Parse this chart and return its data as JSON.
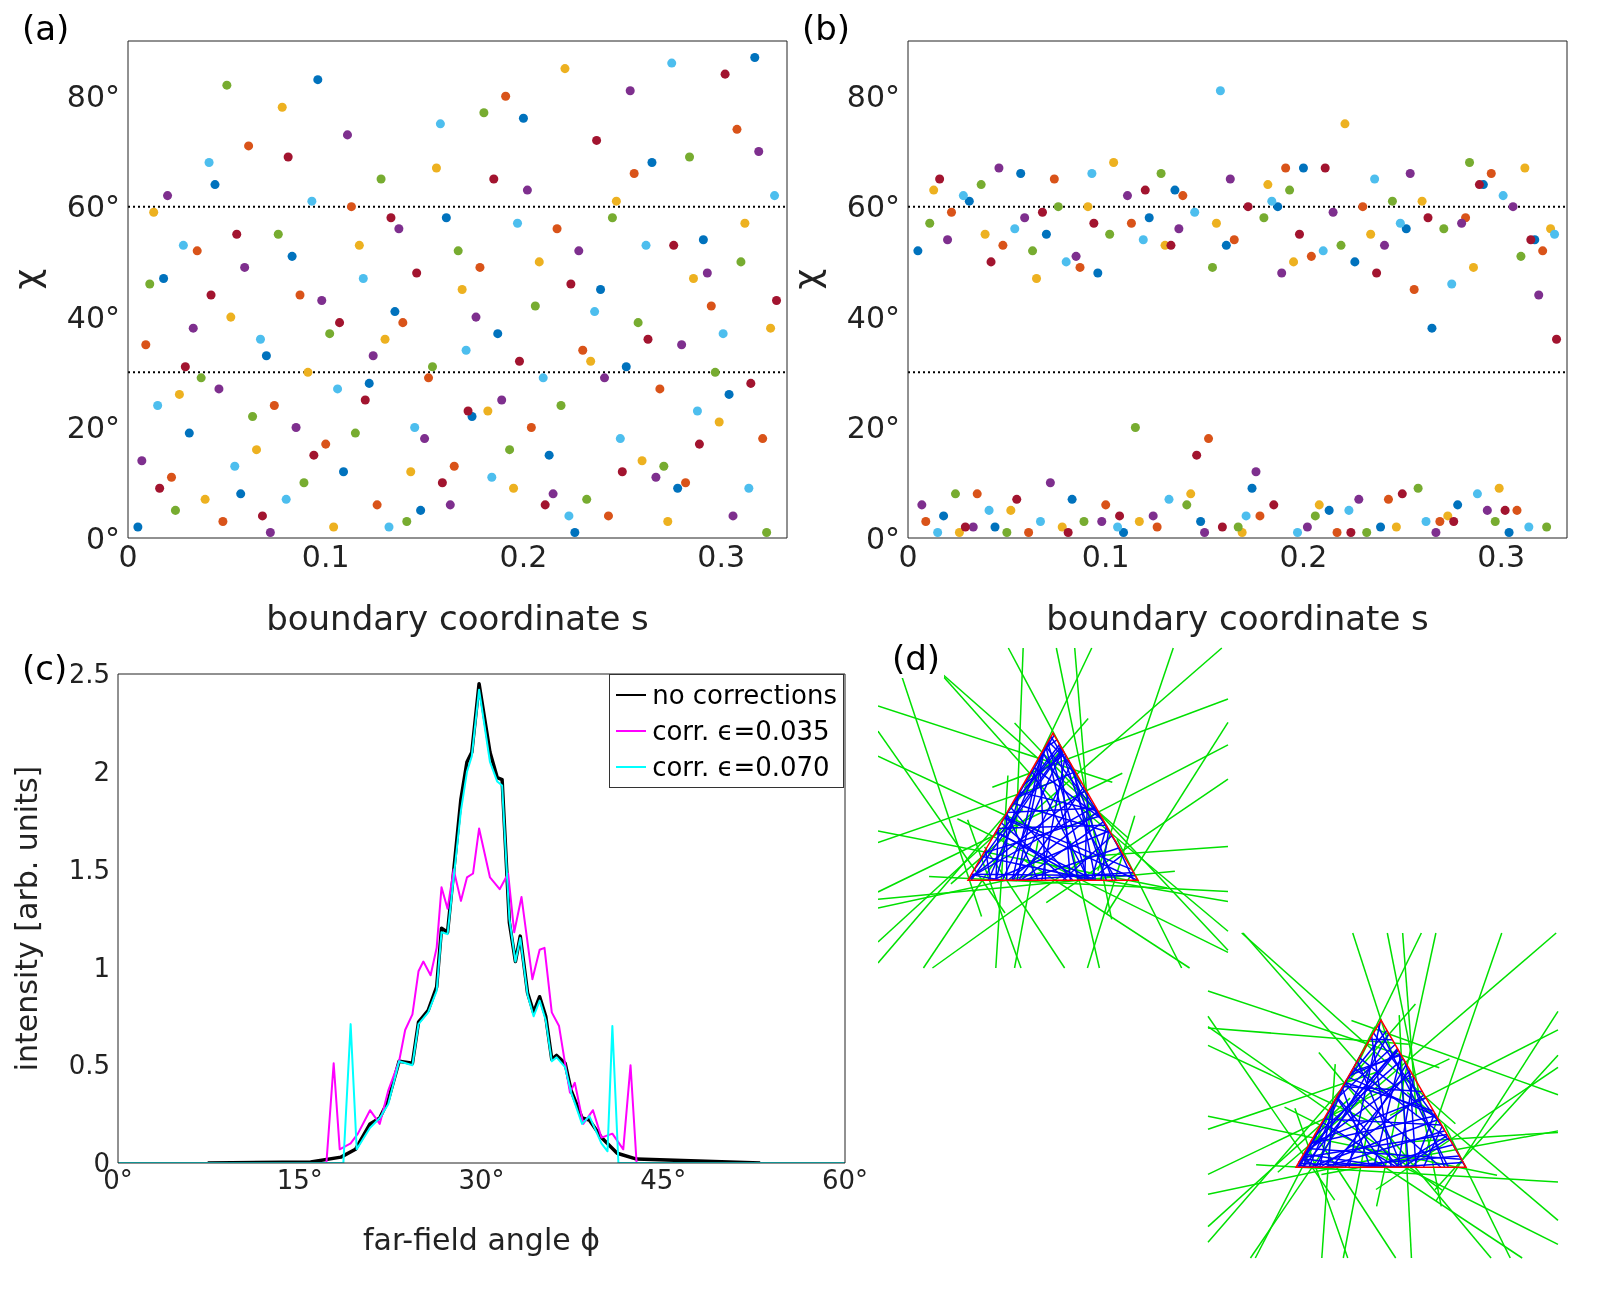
{
  "chart_data": [
    {
      "type": "scatter",
      "annotations": [
        "(a)"
      ],
      "xlabel": "boundary coordinate s",
      "ylabel": "χ",
      "xlim": [
        0,
        0.3333
      ],
      "xticks": [
        0,
        0.1,
        0.2,
        0.3
      ],
      "ylim": [
        0,
        90
      ],
      "yticks": [
        {
          "value": 0,
          "label": "0°"
        },
        {
          "value": 20,
          "label": "20°"
        },
        {
          "value": 40,
          "label": "40°"
        },
        {
          "value": 60,
          "label": "60°"
        },
        {
          "value": 80,
          "label": "80°"
        }
      ],
      "marker": "circle",
      "ref_lines": [
        {
          "axis": "y",
          "value": 60,
          "color": "#000000",
          "line_style": "dotted"
        },
        {
          "axis": "y",
          "value": 30,
          "color": "#000000",
          "line_style": "dotted"
        }
      ],
      "series": [
        {
          "color": "#0072bd",
          "x": [
            0.005,
            0.018,
            0.031,
            0.044,
            0.057,
            0.07,
            0.083,
            0.096,
            0.109,
            0.122,
            0.135,
            0.148,
            0.161,
            0.174,
            0.187,
            0.2,
            0.213,
            0.226,
            0.239,
            0.252,
            0.265,
            0.278,
            0.291,
            0.304,
            0.317
          ],
          "values": [
            2,
            47,
            19,
            64,
            8,
            33,
            51,
            83,
            12,
            28,
            41,
            5,
            58,
            22,
            37,
            76,
            15,
            1,
            45,
            31,
            68,
            9,
            54,
            26,
            87
          ]
        },
        {
          "color": "#d95319",
          "x": [
            0.009,
            0.022,
            0.035,
            0.048,
            0.061,
            0.074,
            0.087,
            0.1,
            0.113,
            0.126,
            0.139,
            0.152,
            0.165,
            0.178,
            0.191,
            0.204,
            0.217,
            0.23,
            0.243,
            0.256,
            0.269,
            0.282,
            0.295,
            0.308,
            0.321
          ],
          "values": [
            35,
            11,
            52,
            3,
            71,
            24,
            44,
            17,
            60,
            6,
            39,
            29,
            13,
            49,
            80,
            20,
            56,
            34,
            4,
            66,
            27,
            10,
            42,
            74,
            18
          ]
        },
        {
          "color": "#edb120",
          "x": [
            0.013,
            0.026,
            0.039,
            0.052,
            0.065,
            0.078,
            0.091,
            0.104,
            0.117,
            0.13,
            0.143,
            0.156,
            0.169,
            0.182,
            0.195,
            0.208,
            0.221,
            0.234,
            0.247,
            0.26,
            0.273,
            0.286,
            0.299,
            0.312,
            0.325
          ],
          "values": [
            59,
            26,
            7,
            40,
            16,
            78,
            30,
            2,
            53,
            36,
            12,
            67,
            45,
            23,
            9,
            50,
            85,
            32,
            61,
            14,
            3,
            47,
            21,
            57,
            38
          ]
        },
        {
          "color": "#7e2f8e",
          "x": [
            0.007,
            0.02,
            0.033,
            0.046,
            0.059,
            0.072,
            0.085,
            0.098,
            0.111,
            0.124,
            0.137,
            0.15,
            0.163,
            0.176,
            0.189,
            0.202,
            0.215,
            0.228,
            0.241,
            0.254,
            0.267,
            0.28,
            0.293,
            0.306,
            0.319
          ],
          "values": [
            14,
            62,
            38,
            27,
            49,
            1,
            20,
            43,
            73,
            33,
            56,
            18,
            6,
            40,
            25,
            63,
            8,
            52,
            29,
            81,
            11,
            35,
            48,
            4,
            70
          ]
        },
        {
          "color": "#77ac30",
          "x": [
            0.011,
            0.024,
            0.037,
            0.05,
            0.063,
            0.076,
            0.089,
            0.102,
            0.115,
            0.128,
            0.141,
            0.154,
            0.167,
            0.18,
            0.193,
            0.206,
            0.219,
            0.232,
            0.245,
            0.258,
            0.271,
            0.284,
            0.297,
            0.31,
            0.323
          ],
          "values": [
            46,
            5,
            29,
            82,
            22,
            55,
            10,
            37,
            19,
            65,
            3,
            31,
            52,
            77,
            16,
            42,
            24,
            7,
            58,
            39,
            13,
            69,
            30,
            50,
            1
          ]
        },
        {
          "color": "#4dbeee",
          "x": [
            0.015,
            0.028,
            0.041,
            0.054,
            0.067,
            0.08,
            0.093,
            0.106,
            0.119,
            0.132,
            0.145,
            0.158,
            0.171,
            0.184,
            0.197,
            0.21,
            0.223,
            0.236,
            0.249,
            0.262,
            0.275,
            0.288,
            0.301,
            0.314,
            0.327
          ],
          "values": [
            24,
            53,
            68,
            13,
            36,
            7,
            61,
            27,
            47,
            2,
            20,
            75,
            34,
            11,
            57,
            29,
            4,
            41,
            18,
            53,
            86,
            23,
            37,
            9,
            62
          ]
        },
        {
          "color": "#a2142f",
          "x": [
            0.016,
            0.029,
            0.042,
            0.055,
            0.068,
            0.081,
            0.094,
            0.107,
            0.12,
            0.133,
            0.146,
            0.159,
            0.172,
            0.185,
            0.198,
            0.211,
            0.224,
            0.237,
            0.25,
            0.263,
            0.276,
            0.289,
            0.302,
            0.315,
            0.328
          ],
          "values": [
            9,
            31,
            44,
            55,
            4,
            69,
            15,
            39,
            25,
            58,
            48,
            10,
            23,
            65,
            32,
            6,
            46,
            72,
            12,
            36,
            53,
            17,
            84,
            28,
            43
          ]
        }
      ]
    },
    {
      "type": "scatter",
      "annotations": [
        "(b)"
      ],
      "xlabel": "boundary coordinate s",
      "ylabel": "χ",
      "xlim": [
        0,
        0.3333
      ],
      "xticks": [
        0,
        0.1,
        0.2,
        0.3
      ],
      "ylim": [
        0,
        90
      ],
      "yticks": [
        {
          "value": 0,
          "label": "0°"
        },
        {
          "value": 20,
          "label": "20°"
        },
        {
          "value": 40,
          "label": "40°"
        },
        {
          "value": 60,
          "label": "60°"
        },
        {
          "value": 80,
          "label": "80°"
        }
      ],
      "marker": "circle",
      "ref_lines": [
        {
          "axis": "y",
          "value": 60,
          "color": "#000000",
          "line_style": "dotted"
        },
        {
          "axis": "y",
          "value": 30,
          "color": "#000000",
          "line_style": "dotted"
        }
      ],
      "series": [
        {
          "color": "#0072bd",
          "x": [
            0.005,
            0.018,
            0.031,
            0.044,
            0.057,
            0.07,
            0.083,
            0.096,
            0.109,
            0.122,
            0.135,
            0.148,
            0.161,
            0.174,
            0.187,
            0.2,
            0.213,
            0.226,
            0.239,
            0.252,
            0.265,
            0.278,
            0.291,
            0.304,
            0.317
          ],
          "values": [
            52,
            4,
            61,
            2,
            66,
            55,
            7,
            48,
            1,
            58,
            63,
            3,
            53,
            9,
            60,
            67,
            5,
            50,
            2,
            56,
            38,
            6,
            64,
            1,
            54
          ]
        },
        {
          "color": "#d95319",
          "x": [
            0.009,
            0.022,
            0.035,
            0.048,
            0.061,
            0.074,
            0.087,
            0.1,
            0.113,
            0.126,
            0.139,
            0.152,
            0.165,
            0.178,
            0.191,
            0.204,
            0.217,
            0.23,
            0.243,
            0.256,
            0.269,
            0.282,
            0.295,
            0.308,
            0.321
          ],
          "values": [
            3,
            59,
            8,
            53,
            1,
            65,
            49,
            6,
            57,
            2,
            62,
            18,
            54,
            4,
            67,
            51,
            1,
            60,
            7,
            45,
            3,
            58,
            66,
            5,
            52
          ]
        },
        {
          "color": "#edb120",
          "x": [
            0.013,
            0.026,
            0.039,
            0.052,
            0.065,
            0.078,
            0.091,
            0.104,
            0.117,
            0.13,
            0.143,
            0.156,
            0.169,
            0.182,
            0.195,
            0.208,
            0.221,
            0.234,
            0.247,
            0.26,
            0.273,
            0.286,
            0.299,
            0.312,
            0.325
          ],
          "values": [
            63,
            1,
            55,
            5,
            47,
            2,
            60,
            68,
            3,
            53,
            8,
            57,
            1,
            64,
            50,
            6,
            75,
            55,
            2,
            61,
            4,
            49,
            9,
            67,
            56
          ]
        },
        {
          "color": "#7e2f8e",
          "x": [
            0.007,
            0.02,
            0.033,
            0.046,
            0.059,
            0.072,
            0.085,
            0.098,
            0.111,
            0.124,
            0.137,
            0.15,
            0.163,
            0.176,
            0.189,
            0.202,
            0.215,
            0.228,
            0.241,
            0.254,
            0.267,
            0.28,
            0.293,
            0.306,
            0.319
          ],
          "values": [
            6,
            54,
            2,
            67,
            58,
            10,
            51,
            3,
            62,
            4,
            56,
            1,
            65,
            12,
            48,
            2,
            59,
            7,
            53,
            66,
            1,
            57,
            5,
            60,
            44
          ]
        },
        {
          "color": "#77ac30",
          "x": [
            0.011,
            0.024,
            0.037,
            0.05,
            0.063,
            0.076,
            0.089,
            0.102,
            0.115,
            0.128,
            0.141,
            0.154,
            0.167,
            0.18,
            0.193,
            0.206,
            0.219,
            0.232,
            0.245,
            0.258,
            0.271,
            0.284,
            0.297,
            0.31,
            0.323
          ],
          "values": [
            57,
            8,
            64,
            1,
            52,
            60,
            3,
            55,
            20,
            66,
            6,
            49,
            2,
            58,
            63,
            4,
            53,
            1,
            61,
            9,
            56,
            68,
            3,
            51,
            2
          ]
        },
        {
          "color": "#4dbeee",
          "x": [
            0.015,
            0.028,
            0.041,
            0.054,
            0.067,
            0.08,
            0.093,
            0.106,
            0.119,
            0.132,
            0.145,
            0.158,
            0.171,
            0.184,
            0.197,
            0.21,
            0.223,
            0.236,
            0.249,
            0.262,
            0.275,
            0.288,
            0.301,
            0.314,
            0.327
          ],
          "values": [
            1,
            62,
            5,
            56,
            3,
            50,
            66,
            2,
            54,
            7,
            59,
            81,
            4,
            61,
            1,
            52,
            5,
            65,
            57,
            3,
            46,
            8,
            62,
            2,
            55
          ]
        },
        {
          "color": "#a2142f",
          "x": [
            0.016,
            0.029,
            0.042,
            0.055,
            0.068,
            0.081,
            0.094,
            0.107,
            0.12,
            0.133,
            0.146,
            0.159,
            0.172,
            0.185,
            0.198,
            0.211,
            0.224,
            0.237,
            0.25,
            0.263,
            0.276,
            0.289,
            0.302,
            0.315,
            0.328
          ],
          "values": [
            65,
            2,
            50,
            7,
            59,
            1,
            57,
            4,
            63,
            53,
            15,
            2,
            60,
            6,
            55,
            67,
            1,
            48,
            8,
            58,
            3,
            64,
            5,
            54,
            36
          ]
        }
      ]
    },
    {
      "type": "line",
      "annotations": [
        "(c)"
      ],
      "xlabel": "far-field angle ϕ",
      "ylabel": "intensity [arb. units]",
      "xlim": [
        0,
        60
      ],
      "xticks": [
        {
          "value": 0,
          "label": "0°"
        },
        {
          "value": 15,
          "label": "15°"
        },
        {
          "value": 30,
          "label": "30°"
        },
        {
          "value": 45,
          "label": "45°"
        },
        {
          "value": 60,
          "label": "60°"
        }
      ],
      "ylim": [
        0,
        2.5
      ],
      "yticks": [
        0,
        0.5,
        1,
        1.5,
        2,
        2.5
      ],
      "legend": "top right",
      "series": [
        {
          "name": "no corrections",
          "color": "#000000",
          "x": [
            7.4,
            15.9,
            18.4,
            19.6,
            20.8,
            21.6,
            22.3,
            23.2,
            24.3,
            24.8,
            25.6,
            26.3,
            26.7,
            27.2,
            28.3,
            28.8,
            29.2,
            29.8,
            30.7,
            31.3,
            31.7,
            32.3,
            32.8,
            33.2,
            33.8,
            34.3,
            34.8,
            35.3,
            35.8,
            36.2,
            36.9,
            37.4,
            38.3,
            38.9,
            39.9,
            41.2,
            42.8,
            53
          ],
          "values": [
            0,
            0.005,
            0.03,
            0.07,
            0.2,
            0.23,
            0.32,
            0.52,
            0.51,
            0.72,
            0.78,
            0.9,
            1.2,
            1.18,
            1.86,
            2.05,
            2.1,
            2.45,
            2.1,
            1.97,
            1.96,
            1.23,
            1.03,
            1.16,
            0.87,
            0.77,
            0.85,
            0.75,
            0.53,
            0.55,
            0.51,
            0.37,
            0.23,
            0.22,
            0.13,
            0.05,
            0.02,
            0
          ]
        },
        {
          "name": "corr. ϵ=0.035",
          "color": "#ff00ff",
          "x": [
            0,
            17.2,
            17.8,
            18.3,
            19.2,
            19.8,
            20.8,
            21.6,
            22.3,
            23.2,
            23.7,
            24.3,
            24.8,
            25.2,
            25.8,
            26.3,
            26.7,
            27.2,
            27.7,
            28.3,
            28.8,
            29.3,
            29.8,
            30.7,
            31.5,
            32.2,
            32.7,
            33.3,
            34.2,
            34.8,
            35.2,
            35.8,
            36.4,
            37,
            37.3,
            37.7,
            38.4,
            39.2,
            39.9,
            40.8,
            41.7,
            42.3,
            42.8,
            60
          ],
          "values": [
            0,
            0,
            0.51,
            0.07,
            0.1,
            0.15,
            0.27,
            0.2,
            0.37,
            0.52,
            0.68,
            0.76,
            0.98,
            1.03,
            0.96,
            1.1,
            1.41,
            1.3,
            1.5,
            1.34,
            1.46,
            1.48,
            1.71,
            1.46,
            1.4,
            1.48,
            1.18,
            1.36,
            0.94,
            1.09,
            1.1,
            0.77,
            0.7,
            0.47,
            0.36,
            0.41,
            0.2,
            0.27,
            0.13,
            0.15,
            0.07,
            0.5,
            0,
            0
          ]
        },
        {
          "name": "corr. ϵ=0.070",
          "color": "#00ffff",
          "x": [
            0,
            18.6,
            19.2,
            19.7,
            20.8,
            21.6,
            22.3,
            23.2,
            24.3,
            24.8,
            25.6,
            26.3,
            26.7,
            27.2,
            28.3,
            28.8,
            29.2,
            29.8,
            30.7,
            31.3,
            31.7,
            32.3,
            32.8,
            33.2,
            33.8,
            34.3,
            34.8,
            35.3,
            35.8,
            36.2,
            36.9,
            37.4,
            38.3,
            38.9,
            39.9,
            40.4,
            40.8,
            41.3,
            60
          ],
          "values": [
            0,
            0,
            0.71,
            0.07,
            0.18,
            0.23,
            0.3,
            0.52,
            0.5,
            0.71,
            0.77,
            0.88,
            1.18,
            1.17,
            1.8,
            2,
            2.08,
            2.42,
            2.05,
            1.95,
            1.93,
            1.25,
            1.03,
            1.15,
            0.86,
            0.75,
            0.83,
            0.73,
            0.52,
            0.54,
            0.49,
            0.36,
            0.2,
            0.24,
            0.1,
            0.06,
            0.7,
            0,
            0
          ]
        }
      ]
    },
    {
      "type": "other",
      "annotations": [
        "(d)"
      ]
    }
  ]
}
